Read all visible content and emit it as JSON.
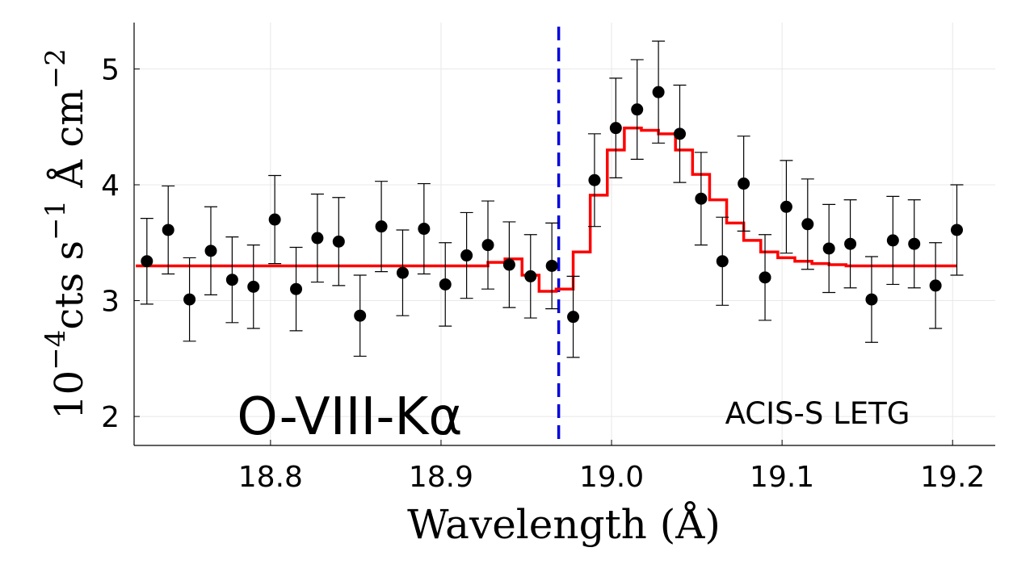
{
  "chart_data": {
    "type": "scatter",
    "title": "",
    "xlabel": "Wavelength (Å)",
    "ylabel_parts": {
      "exp_base": "10",
      "exp": "−4",
      "body": "cts s",
      "s_exp": "−1",
      "unit": " Å cm",
      "cm_exp": "−2"
    },
    "xlim": [
      18.72,
      19.225
    ],
    "ylim": [
      1.75,
      5.4
    ],
    "xticks": [
      {
        "v": 18.8,
        "label": "18.8"
      },
      {
        "v": 18.9,
        "label": "18.9"
      },
      {
        "v": 19.0,
        "label": "19.0"
      },
      {
        "v": 19.1,
        "label": "19.1"
      },
      {
        "v": 19.2,
        "label": "19.2"
      }
    ],
    "yticks": [
      {
        "v": 2,
        "label": "2"
      },
      {
        "v": 3,
        "label": "3"
      },
      {
        "v": 4,
        "label": "4"
      },
      {
        "v": 5,
        "label": "5"
      }
    ],
    "grid": true,
    "annotations": {
      "line_label": "O-VIII-Kα",
      "instrument": "ACIS-S LETG"
    },
    "reference_line": {
      "x": 18.969,
      "color": "#0000dd",
      "style": "dashed"
    },
    "colors": {
      "data": "#000000",
      "model": "#ff0000"
    },
    "series": [
      {
        "name": "data",
        "kind": "points_with_errorbars",
        "x": [
          18.7275,
          18.74,
          18.7525,
          18.765,
          18.7775,
          18.79,
          18.8025,
          18.815,
          18.8275,
          18.84,
          18.8525,
          18.865,
          18.8775,
          18.89,
          18.9025,
          18.915,
          18.9275,
          18.94,
          18.9525,
          18.965,
          18.9775,
          18.99,
          19.0025,
          19.015,
          19.0275,
          19.04,
          19.0525,
          19.065,
          19.0775,
          19.09,
          19.1025,
          19.115,
          19.1275,
          19.14,
          19.1525,
          19.165,
          19.1775,
          19.19,
          19.2025
        ],
        "y": [
          3.34,
          3.61,
          3.01,
          3.43,
          3.18,
          3.12,
          3.7,
          3.1,
          3.54,
          3.51,
          2.87,
          3.64,
          3.24,
          3.62,
          3.14,
          3.39,
          3.48,
          3.31,
          3.21,
          3.3,
          2.86,
          4.04,
          4.49,
          4.65,
          4.8,
          4.44,
          3.88,
          3.34,
          4.01,
          3.2,
          3.81,
          3.66,
          3.45,
          3.49,
          3.01,
          3.52,
          3.49,
          3.13,
          3.61
        ],
        "err": [
          0.37,
          0.38,
          0.36,
          0.38,
          0.37,
          0.36,
          0.38,
          0.36,
          0.38,
          0.38,
          0.35,
          0.39,
          0.37,
          0.39,
          0.36,
          0.37,
          0.38,
          0.37,
          0.36,
          0.37,
          0.35,
          0.4,
          0.43,
          0.43,
          0.44,
          0.42,
          0.4,
          0.38,
          0.41,
          0.37,
          0.4,
          0.39,
          0.38,
          0.38,
          0.37,
          0.38,
          0.38,
          0.37,
          0.39
        ]
      },
      {
        "name": "model",
        "kind": "step",
        "edges": [
          18.721,
          18.9275,
          18.9375,
          18.9475,
          18.9575,
          18.9675,
          18.9775,
          18.9875,
          18.9975,
          19.0075,
          19.0175,
          19.0275,
          19.0375,
          19.0475,
          19.0575,
          19.0675,
          19.0775,
          19.0875,
          19.0975,
          19.1075,
          19.1175,
          19.1275,
          19.1375,
          19.1475,
          19.2025
        ],
        "values": [
          3.3,
          3.33,
          3.36,
          3.22,
          3.08,
          3.1,
          3.42,
          3.91,
          4.3,
          4.49,
          4.47,
          4.44,
          4.3,
          4.09,
          3.87,
          3.67,
          3.52,
          3.42,
          3.37,
          3.34,
          3.32,
          3.31,
          3.3,
          3.3
        ]
      }
    ]
  }
}
